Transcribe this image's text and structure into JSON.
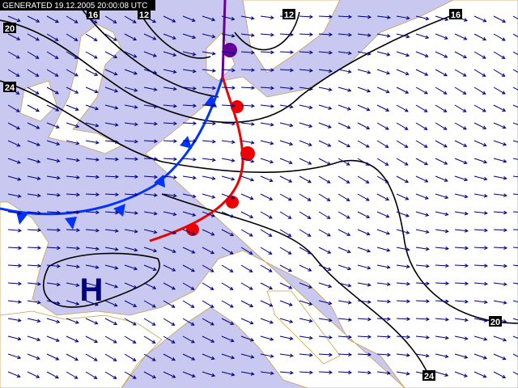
{
  "header": {
    "generated": "GENERATED 19.12.2005 20:00:08 UTC"
  },
  "isobar_labels": [
    "20",
    "24",
    "16",
    "12",
    "12",
    "16",
    "20",
    "24"
  ],
  "pressure_centers": [
    {
      "label": "H"
    }
  ]
}
